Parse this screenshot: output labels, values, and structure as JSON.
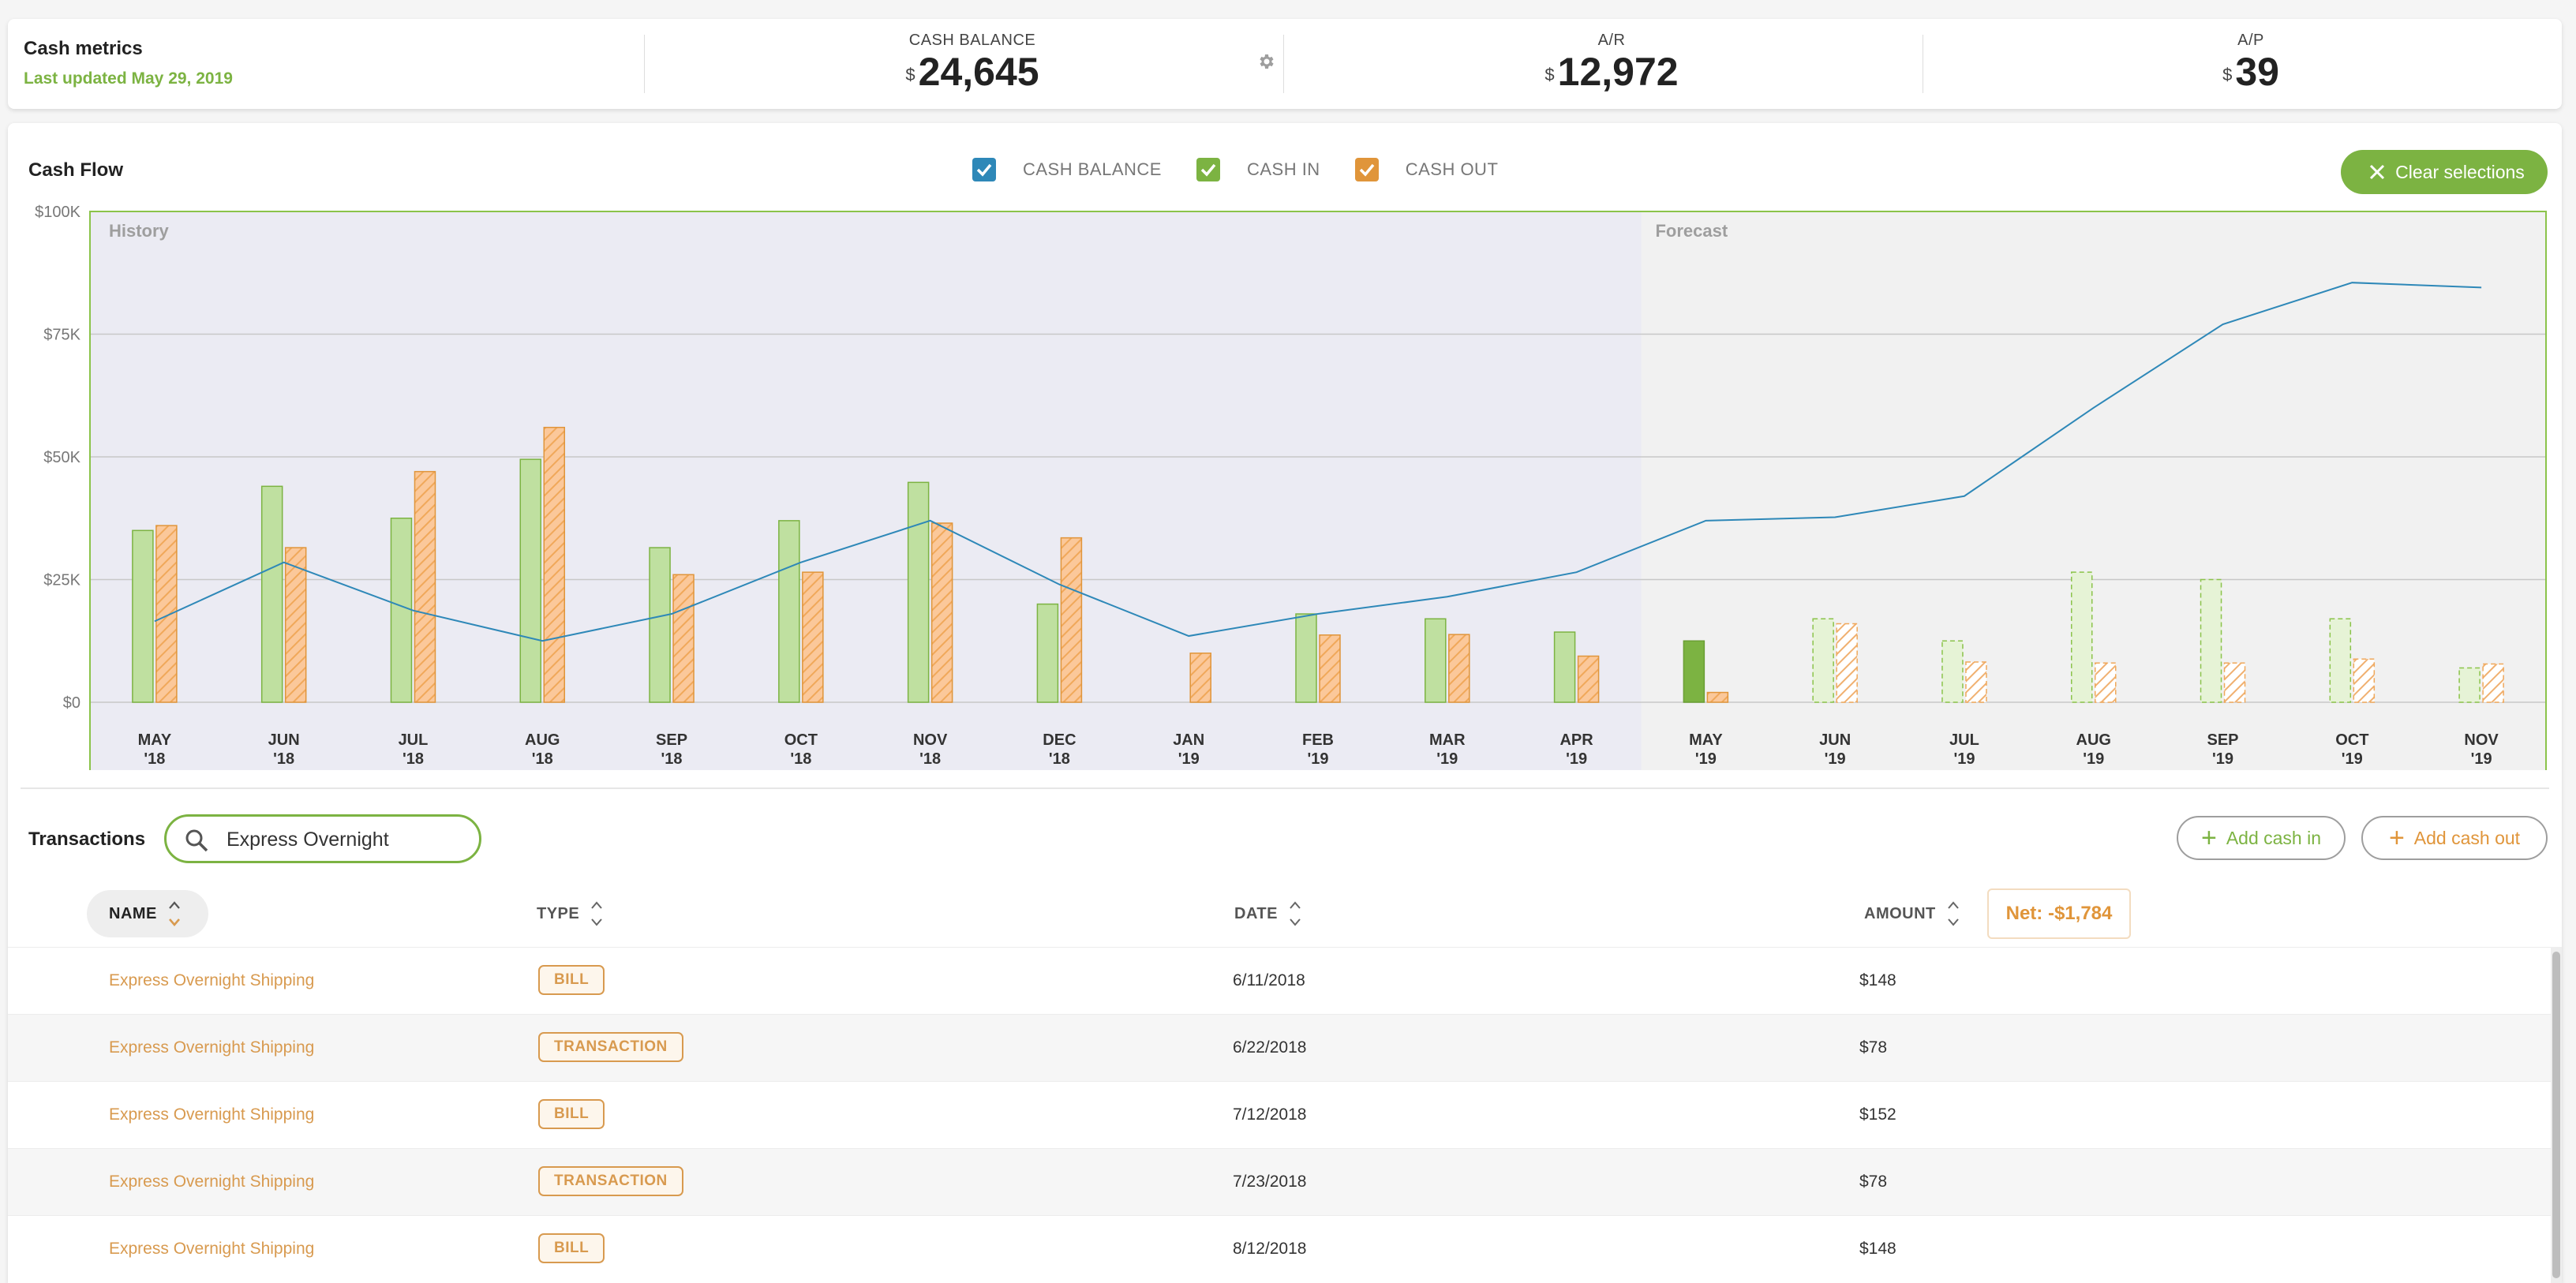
{
  "metrics": {
    "title": "Cash metrics",
    "last_updated": "Last updated May 29, 2019",
    "currency_symbol": "$",
    "items": [
      {
        "label": "CASH BALANCE",
        "value": "24,645"
      },
      {
        "label": "A/R",
        "value": "12,972"
      },
      {
        "label": "A/P",
        "value": "39"
      }
    ]
  },
  "cashflow": {
    "title": "Cash Flow",
    "legend": [
      {
        "label": "CASH BALANCE",
        "color": "#2e88b8"
      },
      {
        "label": "CASH IN",
        "color": "#7cb342"
      },
      {
        "label": "CASH OUT",
        "color": "#e0953a"
      }
    ],
    "clear_label": "Clear selections"
  },
  "chart_data": {
    "type": "bar",
    "regions": [
      "History",
      "Forecast"
    ],
    "forecast_starts_at": "MAY '19",
    "categories": [
      "MAY '18",
      "JUN '18",
      "JUL '18",
      "AUG '18",
      "SEP '18",
      "OCT '18",
      "NOV '18",
      "DEC '18",
      "JAN '19",
      "FEB '19",
      "MAR '19",
      "APR '19",
      "MAY '19",
      "JUN '19",
      "JUL '19",
      "AUG '19",
      "SEP '19",
      "OCT '19",
      "NOV '19"
    ],
    "category_lines": [
      [
        "MAY",
        "'18"
      ],
      [
        "JUN",
        "'18"
      ],
      [
        "JUL",
        "'18"
      ],
      [
        "AUG",
        "'18"
      ],
      [
        "SEP",
        "'18"
      ],
      [
        "OCT",
        "'18"
      ],
      [
        "NOV",
        "'18"
      ],
      [
        "DEC",
        "'18"
      ],
      [
        "JAN",
        "'19"
      ],
      [
        "FEB",
        "'19"
      ],
      [
        "MAR",
        "'19"
      ],
      [
        "APR",
        "'19"
      ],
      [
        "MAY",
        "'19"
      ],
      [
        "JUN",
        "'19"
      ],
      [
        "JUL",
        "'19"
      ],
      [
        "AUG",
        "'19"
      ],
      [
        "SEP",
        "'19"
      ],
      [
        "OCT",
        "'19"
      ],
      [
        "NOV",
        "'19"
      ]
    ],
    "yticks": [
      {
        "value": 0,
        "label": "$0"
      },
      {
        "value": 25000,
        "label": "$25K"
      },
      {
        "value": 50000,
        "label": "$50K"
      },
      {
        "value": 75000,
        "label": "$75K"
      },
      {
        "value": 100000,
        "label": "$100K"
      }
    ],
    "ylim": [
      0,
      100000
    ],
    "grid": true,
    "series": [
      {
        "name": "CASH IN",
        "type": "bar",
        "color": "#7cb342",
        "values": [
          35000,
          44000,
          37500,
          49500,
          31500,
          37000,
          44800,
          20000,
          0,
          18000,
          17000,
          14300,
          12500,
          17000,
          12500,
          26500,
          25000,
          17000,
          7000
        ]
      },
      {
        "name": "CASH OUT",
        "type": "bar",
        "color": "#e0953a",
        "values": [
          36000,
          31500,
          47000,
          56000,
          26000,
          26500,
          36500,
          33500,
          10000,
          13700,
          13800,
          9400,
          2000,
          16000,
          8200,
          8000,
          8000,
          8800,
          7800
        ]
      },
      {
        "name": "CASH BALANCE",
        "type": "line",
        "color": "#2e88b8",
        "values": [
          16500,
          28500,
          18700,
          12500,
          18000,
          28500,
          37000,
          24000,
          13500,
          18000,
          21500,
          26500,
          37000,
          37700,
          42000,
          60000,
          77000,
          85500,
          84500
        ]
      }
    ]
  },
  "transactions": {
    "title": "Transactions",
    "search_value": "Express Overnight",
    "add_cash_in": "Add cash in",
    "add_cash_out": "Add cash out",
    "columns": {
      "name": "NAME",
      "type": "TYPE",
      "date": "DATE",
      "amount": "AMOUNT"
    },
    "net": "Net: -$1,784",
    "rows": [
      {
        "name": "Express Overnight Shipping",
        "type": "BILL",
        "date": "6/11/2018",
        "amount": "$148"
      },
      {
        "name": "Express Overnight Shipping",
        "type": "TRANSACTION",
        "date": "6/22/2018",
        "amount": "$78"
      },
      {
        "name": "Express Overnight Shipping",
        "type": "BILL",
        "date": "7/12/2018",
        "amount": "$152"
      },
      {
        "name": "Express Overnight Shipping",
        "type": "TRANSACTION",
        "date": "7/23/2018",
        "amount": "$78"
      },
      {
        "name": "Express Overnight Shipping",
        "type": "BILL",
        "date": "8/12/2018",
        "amount": "$148"
      }
    ]
  }
}
